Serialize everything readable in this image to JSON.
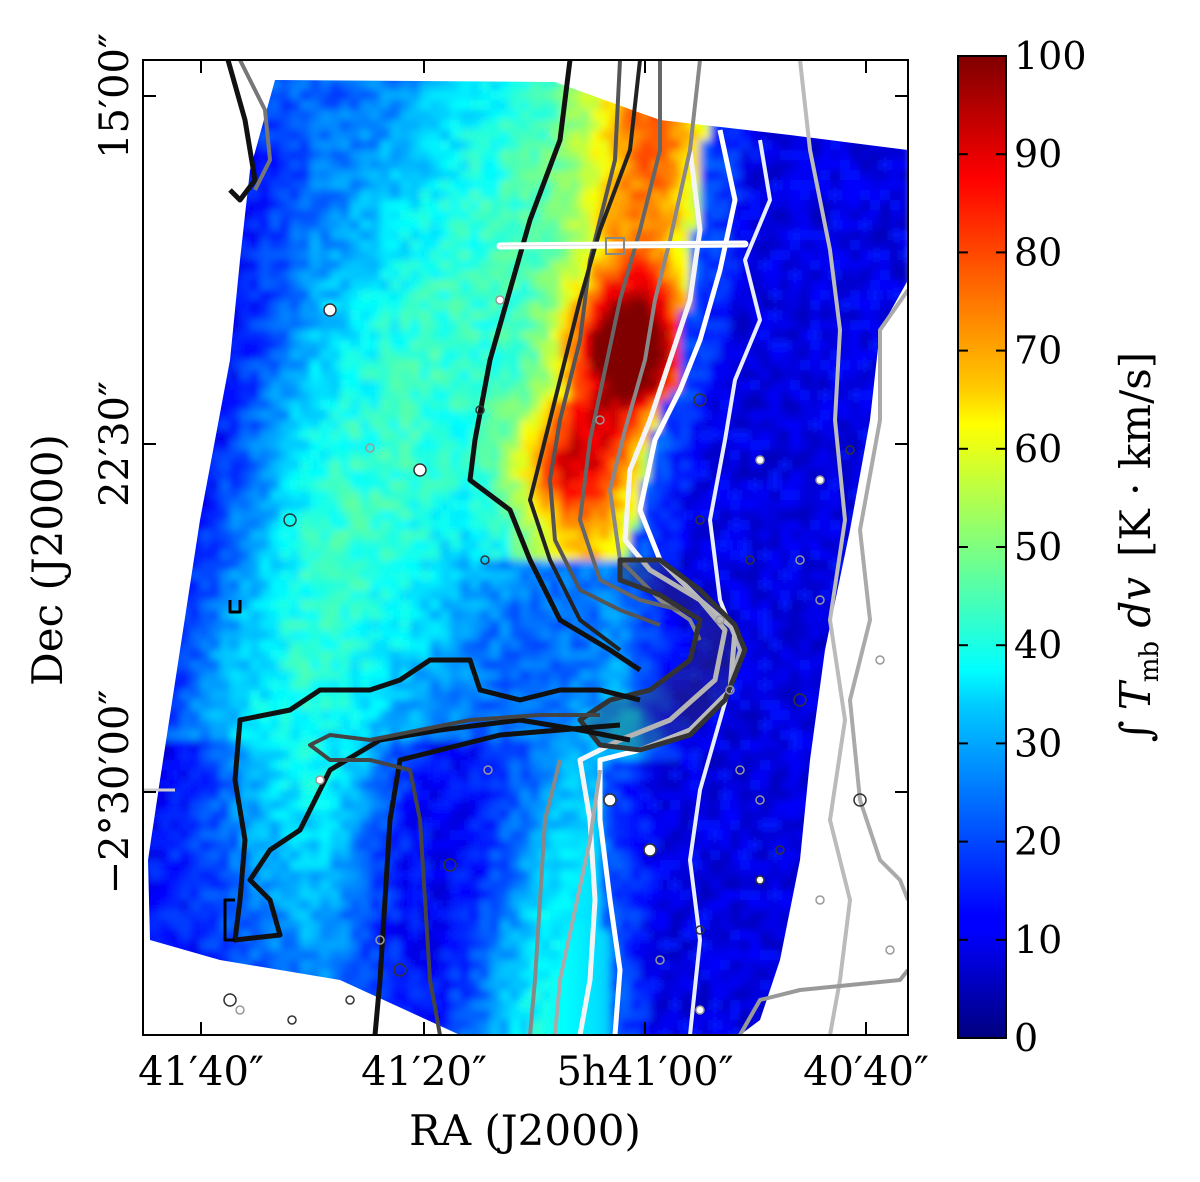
{
  "chart_data": {
    "type": "heatmap",
    "xlabel": "RA (J2000)",
    "ylabel": "Dec (J2000)",
    "x_ticks": [
      "41′40″",
      "41′20″",
      "5h41′00″",
      "40′40″"
    ],
    "y_ticks": [
      "15′00″",
      "22′30″",
      "−2°30′00″"
    ],
    "colorbar": {
      "label": "∫ T_mb dv  [K · km/s]",
      "label_parts": {
        "integral": "∫",
        "T": "T",
        "sub": "mb",
        "dv": " dv",
        "units": "[K · km/s]"
      },
      "min": 0,
      "max": 100,
      "ticks": [
        0,
        10,
        20,
        30,
        40,
        50,
        60,
        70,
        80,
        90,
        100
      ],
      "colormap": "jet"
    },
    "features": {
      "peak_value": 95,
      "ridge_value_range": [
        60,
        85
      ],
      "background_value_range": [
        20,
        45
      ],
      "east_edge_value_range": [
        5,
        20
      ]
    }
  }
}
